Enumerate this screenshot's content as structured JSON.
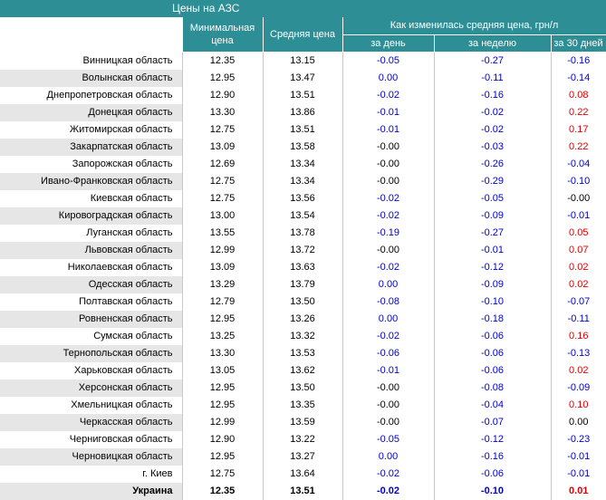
{
  "title": "Цены на АЗС",
  "headers": {
    "min_price": "Минимальная цена",
    "avg_price": "Средняя цена",
    "change_group": "Как изменилась средняя цена, грн/л",
    "per_day": "за день",
    "per_week": "за неделю",
    "per_30": "за 30 дней"
  },
  "colors": {
    "header_bg": "#2d8e96",
    "negative": "#0000cc",
    "positive": "#dd0000"
  },
  "rows": [
    {
      "region": "Винницкая область",
      "min": "12.35",
      "avg": "13.15",
      "day": "-0.05",
      "week": "-0.27",
      "month": "-0.16"
    },
    {
      "region": "Волынская область",
      "min": "12.95",
      "avg": "13.47",
      "day": "0.00",
      "week": "-0.11",
      "month": "-0.14"
    },
    {
      "region": "Днепропетровская область",
      "min": "12.90",
      "avg": "13.51",
      "day": "-0.02",
      "week": "-0.16",
      "month": "0.08"
    },
    {
      "region": "Донецкая область",
      "min": "13.30",
      "avg": "13.86",
      "day": "-0.01",
      "week": "-0.02",
      "month": "0.22"
    },
    {
      "region": "Житомирская область",
      "min": "12.75",
      "avg": "13.51",
      "day": "-0.01",
      "week": "-0.02",
      "month": "0.17"
    },
    {
      "region": "Закарпатская область",
      "min": "13.09",
      "avg": "13.58",
      "day": "-0.00",
      "week": "-0.03",
      "month": "0.22"
    },
    {
      "region": "Запорожская область",
      "min": "12.69",
      "avg": "13.34",
      "day": "-0.00",
      "week": "-0.26",
      "month": "-0.04"
    },
    {
      "region": "Ивано-Франковская область",
      "min": "12.75",
      "avg": "13.34",
      "day": "-0.00",
      "week": "-0.29",
      "month": "-0.10"
    },
    {
      "region": "Киевская область",
      "min": "12.75",
      "avg": "13.56",
      "day": "-0.02",
      "week": "-0.05",
      "month": "-0.00"
    },
    {
      "region": "Кировоградская область",
      "min": "13.00",
      "avg": "13.54",
      "day": "-0.02",
      "week": "-0.09",
      "month": "-0.01"
    },
    {
      "region": "Луганская область",
      "min": "13.55",
      "avg": "13.78",
      "day": "-0.19",
      "week": "-0.27",
      "month": "0.05"
    },
    {
      "region": "Львовская область",
      "min": "12.99",
      "avg": "13.72",
      "day": "-0.00",
      "week": "-0.01",
      "month": "0.07"
    },
    {
      "region": "Николаевская область",
      "min": "13.09",
      "avg": "13.63",
      "day": "-0.02",
      "week": "-0.12",
      "month": "0.02"
    },
    {
      "region": "Одесская область",
      "min": "13.29",
      "avg": "13.79",
      "day": "0.00",
      "week": "-0.09",
      "month": "0.02"
    },
    {
      "region": "Полтавская область",
      "min": "12.79",
      "avg": "13.50",
      "day": "-0.08",
      "week": "-0.10",
      "month": "-0.07"
    },
    {
      "region": "Ровненская область",
      "min": "12.95",
      "avg": "13.26",
      "day": "0.00",
      "week": "-0.18",
      "month": "-0.11"
    },
    {
      "region": "Сумская область",
      "min": "13.25",
      "avg": "13.32",
      "day": "-0.02",
      "week": "-0.06",
      "month": "0.16"
    },
    {
      "region": "Тернопольская область",
      "min": "13.30",
      "avg": "13.53",
      "day": "-0.06",
      "week": "-0.06",
      "month": "-0.13"
    },
    {
      "region": "Харьковская область",
      "min": "13.05",
      "avg": "13.62",
      "day": "-0.01",
      "week": "-0.06",
      "month": "0.02"
    },
    {
      "region": "Херсонская область",
      "min": "12.95",
      "avg": "13.50",
      "day": "-0.00",
      "week": "-0.08",
      "month": "-0.09"
    },
    {
      "region": "Хмельницкая область",
      "min": "12.95",
      "avg": "13.35",
      "day": "-0.00",
      "week": "-0.04",
      "month": "0.10"
    },
    {
      "region": "Черкасская область",
      "min": "12.99",
      "avg": "13.59",
      "day": "-0.00",
      "week": "-0.07",
      "month": "0.00"
    },
    {
      "region": "Черниговская область",
      "min": "12.90",
      "avg": "13.22",
      "day": "-0.05",
      "week": "-0.12",
      "month": "-0.23"
    },
    {
      "region": "Черновицкая область",
      "min": "12.95",
      "avg": "13.27",
      "day": "0.00",
      "week": "-0.16",
      "month": "-0.01"
    },
    {
      "region": "г. Киев",
      "min": "12.75",
      "avg": "13.64",
      "day": "-0.02",
      "week": "-0.06",
      "month": "-0.01"
    },
    {
      "region": "Украина",
      "min": "12.35",
      "avg": "13.51",
      "day": "-0.02",
      "week": "-0.10",
      "month": "0.01",
      "total": true
    }
  ]
}
